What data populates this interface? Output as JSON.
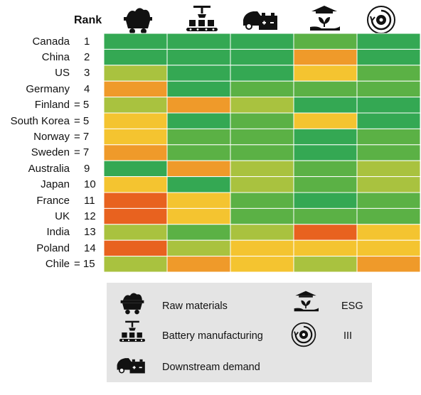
{
  "rank_header": "Rank",
  "legend": {
    "raw_materials": "Raw materials",
    "battery_manufacturing": "Battery manufacturing",
    "downstream_demand": "Downstream demand",
    "esg": "ESG",
    "iii": "III"
  },
  "colors": {
    "dark_green": "#34a853",
    "green": "#5bb145",
    "yellow_green": "#a9c23f",
    "yellow": "#f4c430",
    "orange": "#ef9a2a",
    "red_orange": "#e8621f"
  },
  "chart_data": {
    "type": "heatmap",
    "columns": [
      "raw-materials-icon",
      "battery-manufacturing-icon",
      "downstream-demand-icon",
      "esg-icon",
      "iii-icon"
    ],
    "rows": [
      {
        "country": "Canada",
        "rank": "1"
      },
      {
        "country": "China",
        "rank": "2"
      },
      {
        "country": "US",
        "rank": "3"
      },
      {
        "country": "Germany",
        "rank": "4"
      },
      {
        "country": "Finland",
        "rank": "= 5"
      },
      {
        "country": "South Korea",
        "rank": "= 5"
      },
      {
        "country": "Norway",
        "rank": "= 7"
      },
      {
        "country": "Sweden",
        "rank": "= 7"
      },
      {
        "country": "Australia",
        "rank": "9"
      },
      {
        "country": "Japan",
        "rank": "10"
      },
      {
        "country": "France",
        "rank": "11"
      },
      {
        "country": "UK",
        "rank": "12"
      },
      {
        "country": "India",
        "rank": "13"
      },
      {
        "country": "Poland",
        "rank": "14"
      },
      {
        "country": "Chile",
        "rank": "= 15"
      }
    ],
    "scale": [
      1,
      2,
      3,
      4,
      5,
      6
    ],
    "values": [
      [
        1,
        1,
        1,
        2,
        1
      ],
      [
        1,
        1,
        1,
        5,
        1
      ],
      [
        3,
        1,
        1,
        4,
        2
      ],
      [
        5,
        1,
        2,
        2,
        2
      ],
      [
        3,
        5,
        3,
        1,
        1
      ],
      [
        4,
        1,
        2,
        4,
        1
      ],
      [
        4,
        2,
        2,
        1,
        2
      ],
      [
        5,
        2,
        2,
        1,
        2
      ],
      [
        1,
        5,
        3,
        2,
        3
      ],
      [
        4,
        1,
        3,
        2,
        3
      ],
      [
        6,
        4,
        2,
        1,
        2
      ],
      [
        6,
        4,
        2,
        2,
        2
      ],
      [
        3,
        2,
        3,
        6,
        4
      ],
      [
        6,
        3,
        4,
        4,
        4
      ],
      [
        3,
        5,
        4,
        3,
        5
      ]
    ]
  }
}
